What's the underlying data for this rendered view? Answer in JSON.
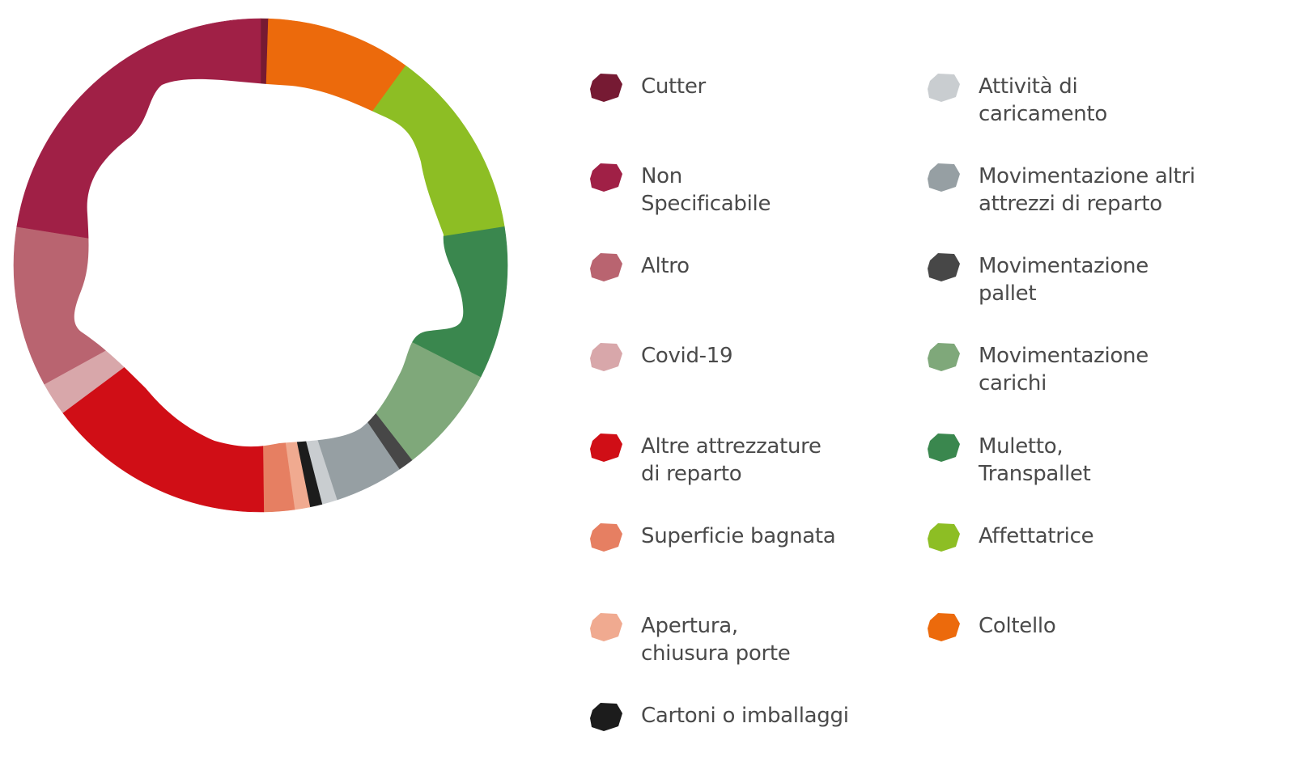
{
  "chart_data": {
    "type": "pie",
    "style": "donut",
    "legend_placement": "right",
    "unit": "share of total (estimated)",
    "series": [
      {
        "name": "Cutter",
        "value": 0.5,
        "color": "#761a33"
      },
      {
        "name": "Coltello",
        "value": 9.5,
        "color": "#ec6a0c"
      },
      {
        "name": "Affettatrice",
        "value": 12.5,
        "color": "#8dbe24"
      },
      {
        "name": "Muletto,\nTranspallet",
        "value": 10.0,
        "color": "#3a874e"
      },
      {
        "name": "Movimentazione\ncarichi",
        "value": 7.0,
        "color": "#7fa87a"
      },
      {
        "name": "Movimentazione\npallet",
        "value": 1.0,
        "color": "#474747"
      },
      {
        "name": "Movimentazione altri\nattrezzi di reparto",
        "value": 4.5,
        "color": "#969fa3"
      },
      {
        "name": "Attività di\ncaricamento",
        "value": 1.0,
        "color": "#c9cdd0"
      },
      {
        "name": "Cartoni o imballaggi",
        "value": 0.8,
        "color": "#1c1c1c"
      },
      {
        "name": "Apertura,\nchiusura porte",
        "value": 1.0,
        "color": "#f0aa90"
      },
      {
        "name": "Superficie bagnata",
        "value": 2.0,
        "color": "#e67f62"
      },
      {
        "name": "Altre attrezzature\ndi reparto",
        "value": 15.0,
        "color": "#d00e16"
      },
      {
        "name": "Covid-19",
        "value": 2.2,
        "color": "#d8a7aa"
      },
      {
        "name": "Altro",
        "value": 10.5,
        "color": "#b96470"
      },
      {
        "name": "Non\nSpecificabile",
        "value": 22.5,
        "color": "#a02046"
      }
    ]
  },
  "legend": {
    "left_column": [
      "Cutter",
      "Non\nSpecificabile",
      "Altro",
      "Covid-19",
      "Altre attrezzature\ndi reparto",
      "Superficie bagnata",
      "Apertura,\nchiusura porte",
      "Cartoni o imballaggi"
    ],
    "right_column": [
      "Attività di\ncaricamento",
      "Movimentazione altri\nattrezzi di reparto",
      "Movimentazione\npallet",
      "Movimentazione\ncarichi",
      "Muletto,\nTranspallet",
      "Affettatrice",
      "Coltello"
    ]
  }
}
